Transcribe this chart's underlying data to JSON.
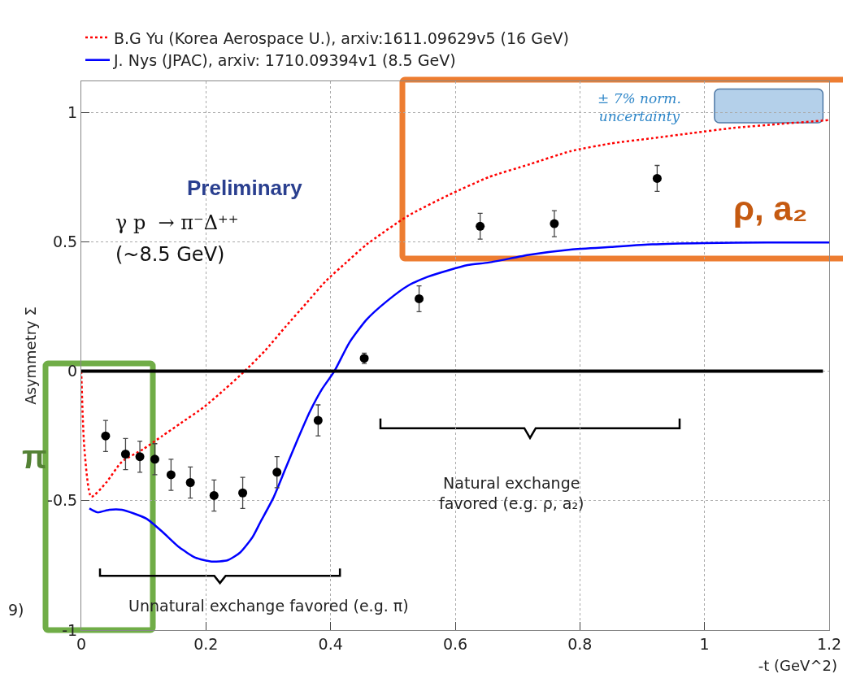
{
  "chart_data": {
    "type": "line",
    "xlabel": "-t (GeV^2)",
    "ylabel": "Asymmetry Σ",
    "xlim": [
      0,
      1.2
    ],
    "xticks": [
      0,
      0.2,
      0.4,
      0.6,
      0.8,
      1,
      1.2
    ],
    "ylim": [
      -1,
      1.12
    ],
    "yticks": [
      -1,
      -0.5,
      0,
      0.5,
      1
    ],
    "grid": true,
    "legend": "top",
    "series": [
      {
        "name": "B.G Yu (Korea Aerospace U.), arxiv:1611.09629v5 (16 GeV)",
        "type": "line",
        "line_style": "dotted",
        "color": "#ff0000",
        "marker": "none",
        "x": [
          0,
          0.005,
          0.016,
          0.04,
          0.065,
          0.1,
          0.13,
          0.16,
          0.196,
          0.23,
          0.262,
          0.295,
          0.327,
          0.36,
          0.393,
          0.425,
          0.458,
          0.524,
          0.589,
          0.654,
          0.72,
          0.785,
          0.85,
          0.916,
          0.98,
          1.047,
          1.12,
          1.2
        ],
        "values": [
          0,
          -0.3,
          -0.485,
          -0.43,
          -0.35,
          -0.3,
          -0.25,
          -0.2,
          -0.14,
          -0.07,
          0,
          0.08,
          0.17,
          0.26,
          0.35,
          0.42,
          0.49,
          0.6,
          0.68,
          0.75,
          0.8,
          0.85,
          0.88,
          0.9,
          0.92,
          0.94,
          0.955,
          0.97
        ]
      },
      {
        "name": "J. Nys (JPAC), arxiv: 1710.09394v1 (8.5 GeV)",
        "type": "line",
        "line_style": "solid",
        "color": "#0000ff",
        "marker": "none",
        "x": [
          0.013,
          0.026,
          0.045,
          0.065,
          0.085,
          0.105,
          0.13,
          0.157,
          0.183,
          0.209,
          0.235,
          0.255,
          0.275,
          0.288,
          0.308,
          0.327,
          0.346,
          0.366,
          0.386,
          0.406,
          0.43,
          0.458,
          0.49,
          0.524,
          0.556,
          0.589,
          0.62,
          0.654,
          0.72,
          0.785,
          0.85,
          0.916,
          1,
          1.1,
          1.2
        ],
        "values": [
          -0.53,
          -0.545,
          -0.535,
          -0.535,
          -0.55,
          -0.57,
          -0.62,
          -0.68,
          -0.72,
          -0.735,
          -0.73,
          -0.7,
          -0.64,
          -0.58,
          -0.49,
          -0.38,
          -0.27,
          -0.16,
          -0.07,
          0,
          0.11,
          0.2,
          0.27,
          0.33,
          0.365,
          0.39,
          0.41,
          0.42,
          0.45,
          0.47,
          0.48,
          0.49,
          0.495,
          0.497,
          0.497
        ]
      },
      {
        "type": "scatter",
        "color": "#000000",
        "marker": "circle",
        "x": [
          0.039,
          0.071,
          0.094,
          0.118,
          0.144,
          0.175,
          0.213,
          0.259,
          0.314,
          0.38,
          0.454,
          0.542,
          0.64,
          0.759,
          0.924
        ],
        "values": [
          -0.25,
          -0.32,
          -0.33,
          -0.34,
          -0.4,
          -0.43,
          -0.48,
          -0.47,
          -0.39,
          -0.19,
          0.05,
          0.28,
          0.56,
          0.57,
          0.745
        ],
        "errors": [
          0.06,
          0.06,
          0.06,
          0.06,
          0.06,
          0.06,
          0.06,
          0.06,
          0.06,
          0.06,
          0.02,
          0.05,
          0.05,
          0.05,
          0.05
        ]
      }
    ],
    "ref_lines": [
      {
        "axis": "y",
        "value": 0,
        "color": "#000000",
        "line_style": "solid"
      }
    ],
    "annotations": [
      "Preliminary",
      "γ p  → π⁻Δ⁺⁺",
      "(~8.5 GeV)",
      "± 7% norm. uncertainty",
      "ρ, a₂",
      "π",
      "Natural exchange favored (e.g. ρ, a₂)",
      "Unnatural exchange favored (e.g. π)",
      "9)"
    ]
  }
}
